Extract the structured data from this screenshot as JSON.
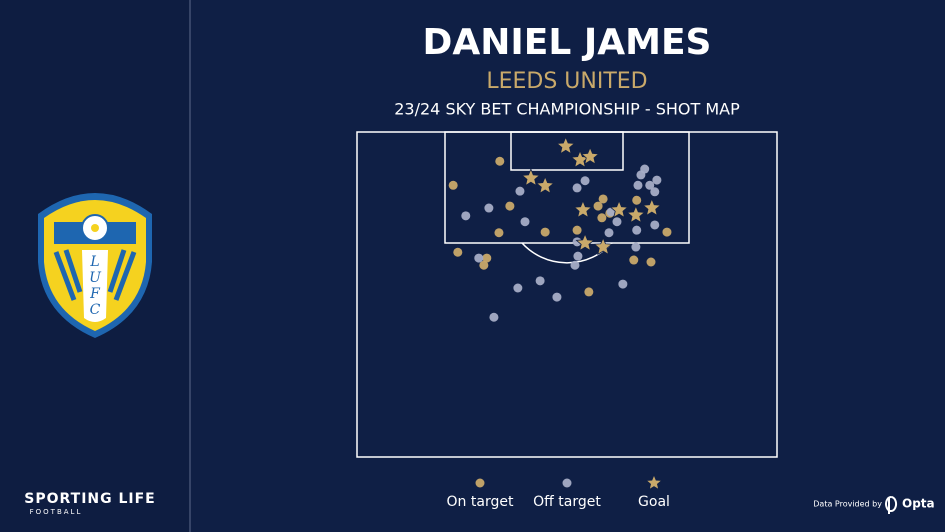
{
  "chart_data": {
    "type": "scatter",
    "title": "DANIEL JAMES",
    "subtitle": "LEEDS UNITED",
    "caption": "23/24 SKY BET CHAMPIONSHIP - SHOT MAP",
    "xlim": [
      0,
      100
    ],
    "ylim": [
      50,
      100
    ],
    "series": [
      {
        "name": "On target",
        "color": "#c9a96a",
        "marker": "circle",
        "x": [
          34.0,
          22.9,
          36.4,
          33.8,
          44.8,
          24.0,
          30.9,
          30.2,
          52.4,
          57.4,
          58.6,
          60.2,
          66.6,
          73.8,
          65.9,
          70.0,
          55.2,
          58.3
        ],
        "y": [
          95.5,
          91.8,
          88.6,
          84.5,
          84.6,
          81.5,
          80.6,
          79.5,
          84.9,
          88.6,
          89.7,
          87.5,
          89.5,
          84.6,
          80.3,
          80.0,
          75.4,
          86.8
        ]
      },
      {
        "name": "Off target",
        "color": "#a7adc6",
        "marker": "circle",
        "x": [
          68.5,
          67.6,
          69.7,
          71.4,
          66.9,
          70.9,
          54.3,
          52.4,
          38.8,
          31.4,
          25.9,
          40.0,
          52.4,
          52.6,
          51.9,
          60.0,
          61.9,
          66.6,
          70.9,
          66.4,
          29.0,
          38.3,
          43.6,
          47.6,
          63.3,
          32.6,
          60.5
        ],
        "y": [
          94.3,
          93.4,
          91.8,
          92.6,
          91.8,
          90.8,
          92.5,
          91.4,
          90.9,
          88.3,
          87.1,
          86.2,
          83.1,
          80.9,
          79.5,
          84.5,
          86.2,
          84.9,
          85.7,
          82.3,
          80.6,
          76.0,
          77.1,
          74.6,
          76.6,
          71.5,
          87.7
        ]
      },
      {
        "name": "Goal",
        "color": "#c9a96a",
        "marker": "star",
        "x": [
          49.7,
          53.1,
          55.5,
          41.4,
          44.8,
          53.8,
          62.4,
          66.4,
          70.2,
          54.3,
          58.6
        ],
        "y": [
          97.8,
          95.7,
          96.2,
          92.9,
          91.7,
          88.0,
          88.0,
          87.2,
          88.3,
          82.9,
          82.3
        ]
      }
    ]
  },
  "crest_letters": [
    "L",
    "U",
    "F",
    "C"
  ],
  "brand": {
    "name": "SPORTING LIFE",
    "sub": "FOOTBALL"
  },
  "credit": {
    "text": "Data Provided by",
    "provider": "Opta"
  }
}
